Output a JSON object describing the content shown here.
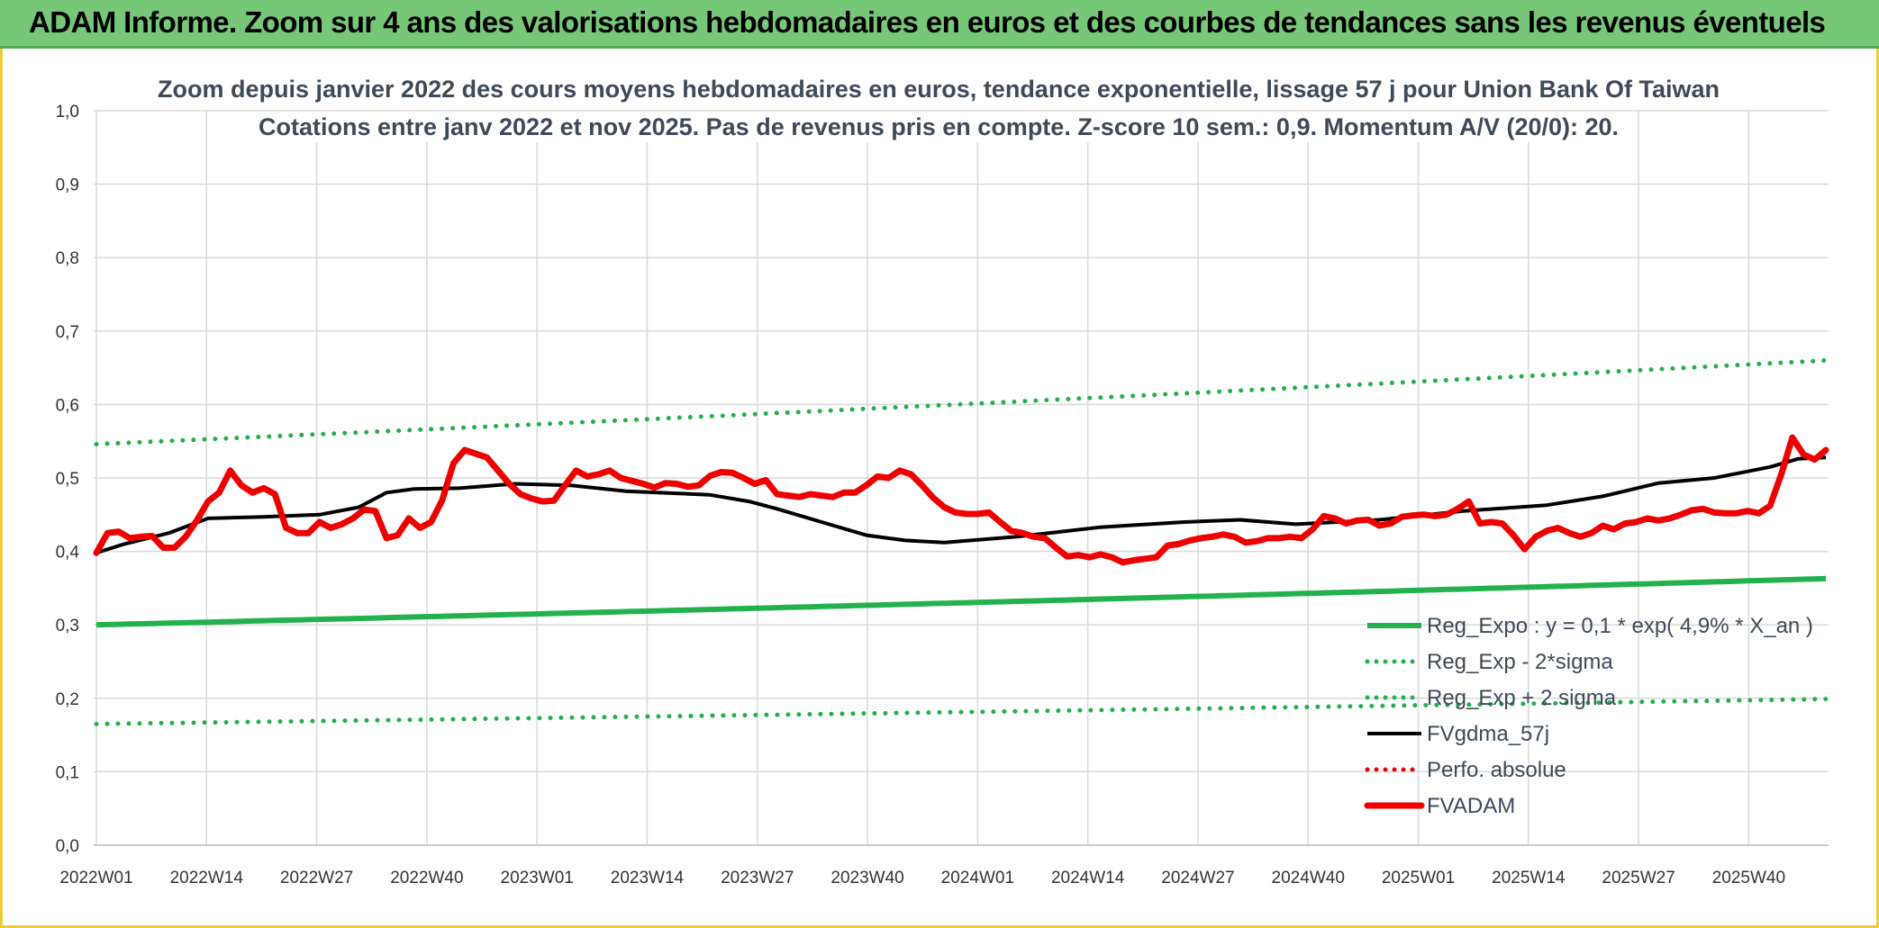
{
  "header": {
    "title": "ADAM Informe. Zoom sur 4 ans des valorisations hebdomadaires en euros et des courbes de tendances sans les revenus éventuels"
  },
  "colors": {
    "banner": "#77c779",
    "trend": "#22b14c",
    "band": "#22b14c",
    "smooth": "#000000",
    "price": "#ee0000",
    "perfo": "#ee0000",
    "grid": "#d9d9d9"
  },
  "chart_data": {
    "type": "line",
    "title_lines": [
      "Zoom depuis janvier 2022 des cours moyens hebdomadaires en euros, tendance exponentielle, lissage 57 j pour Union Bank Of Taiwan",
      "Cotations entre janv 2022 et nov 2025. Pas de revenus pris en compte. Z-score 10 sem.: 0,9. Momentum A/V (20/0): 20."
    ],
    "ylim": [
      0,
      1.0
    ],
    "yticks": [
      "0,0",
      "0,1",
      "0,2",
      "0,3",
      "0,4",
      "0,5",
      "0,6",
      "0,7",
      "0,8",
      "0,9",
      "1,0"
    ],
    "xticks": [
      "2022W01",
      "2022W14",
      "2022W27",
      "2022W40",
      "2023W01",
      "2023W14",
      "2023W27",
      "2023W40",
      "2024W01",
      "2024W14",
      "2024W27",
      "2024W40",
      "2025W01",
      "2025W14",
      "2025W27",
      "2025W40"
    ],
    "n_weeks": 205,
    "legend": [
      {
        "key": "reg",
        "label": "Reg_Expo : y = 0,1 * exp( 4,9% *  X_an )",
        "style": "solid",
        "color": "#22b14c"
      },
      {
        "key": "lower",
        "label": "Reg_Exp - 2*sigma",
        "style": "dotted",
        "color": "#22b14c"
      },
      {
        "key": "upper",
        "label": "Reg_Exp + 2 sigma",
        "style": "dotted",
        "color": "#22b14c"
      },
      {
        "key": "smooth",
        "label": "FVgdma_57j",
        "style": "solid",
        "color": "#000000"
      },
      {
        "key": "perfo",
        "label": "Perfo. absolue",
        "style": "dotted",
        "color": "#ee0000"
      },
      {
        "key": "price",
        "label": "FVADAM",
        "style": "solid-thick",
        "color": "#ee0000"
      }
    ],
    "series": [
      {
        "name": "Reg_Expo",
        "start": 0.3,
        "end": 0.363
      },
      {
        "name": "Reg_Exp - 2*sigma",
        "start": 0.165,
        "end": 0.199
      },
      {
        "name": "Reg_Exp + 2 sigma",
        "start": 0.546,
        "end": 0.66
      },
      {
        "name": "FVgdma_57j",
        "points": [
          [
            0,
            0.398
          ],
          [
            5,
            0.41
          ],
          [
            13,
            0.425
          ],
          [
            20,
            0.445
          ],
          [
            30,
            0.447
          ],
          [
            40,
            0.45
          ],
          [
            47,
            0.46
          ],
          [
            52,
            0.48
          ],
          [
            57,
            0.485
          ],
          [
            65,
            0.486
          ],
          [
            75,
            0.492
          ],
          [
            85,
            0.49
          ],
          [
            95,
            0.482
          ],
          [
            110,
            0.477
          ],
          [
            117,
            0.468
          ],
          [
            122,
            0.458
          ],
          [
            130,
            0.44
          ],
          [
            138,
            0.422
          ],
          [
            145,
            0.415
          ],
          [
            152,
            0.412
          ],
          [
            165,
            0.42
          ],
          [
            180,
            0.433
          ],
          [
            195,
            0.44
          ],
          [
            205,
            0.443
          ],
          [
            215,
            0.437
          ],
          [
            230,
            0.443
          ],
          [
            245,
            0.455
          ],
          [
            260,
            0.463
          ],
          [
            270,
            0.475
          ],
          [
            280,
            0.493
          ],
          [
            290,
            0.5
          ],
          [
            300,
            0.515
          ],
          [
            305,
            0.526
          ],
          [
            310,
            0.528
          ]
        ]
      },
      {
        "name": "FVADAM",
        "points": [
          [
            0,
            0.398
          ],
          [
            2,
            0.425
          ],
          [
            4,
            0.427
          ],
          [
            6,
            0.418
          ],
          [
            8,
            0.42
          ],
          [
            10,
            0.421
          ],
          [
            12,
            0.405
          ],
          [
            14,
            0.405
          ],
          [
            16,
            0.42
          ],
          [
            18,
            0.442
          ],
          [
            20,
            0.468
          ],
          [
            22,
            0.48
          ],
          [
            24,
            0.51
          ],
          [
            26,
            0.49
          ],
          [
            28,
            0.48
          ],
          [
            30,
            0.486
          ],
          [
            32,
            0.478
          ],
          [
            34,
            0.432
          ],
          [
            36,
            0.425
          ],
          [
            38,
            0.425
          ],
          [
            40,
            0.44
          ],
          [
            42,
            0.432
          ],
          [
            44,
            0.437
          ],
          [
            46,
            0.445
          ],
          [
            48,
            0.457
          ],
          [
            50,
            0.455
          ],
          [
            52,
            0.418
          ],
          [
            54,
            0.422
          ],
          [
            56,
            0.445
          ],
          [
            58,
            0.432
          ],
          [
            60,
            0.44
          ],
          [
            62,
            0.47
          ],
          [
            64,
            0.52
          ],
          [
            66,
            0.538
          ],
          [
            68,
            0.533
          ],
          [
            70,
            0.528
          ],
          [
            72,
            0.51
          ],
          [
            74,
            0.492
          ],
          [
            76,
            0.478
          ],
          [
            78,
            0.472
          ],
          [
            80,
            0.468
          ],
          [
            82,
            0.469
          ],
          [
            84,
            0.49
          ],
          [
            86,
            0.51
          ],
          [
            88,
            0.502
          ],
          [
            90,
            0.505
          ],
          [
            92,
            0.51
          ],
          [
            94,
            0.5
          ],
          [
            96,
            0.496
          ],
          [
            98,
            0.492
          ],
          [
            100,
            0.487
          ],
          [
            102,
            0.493
          ],
          [
            104,
            0.492
          ],
          [
            106,
            0.488
          ],
          [
            108,
            0.49
          ],
          [
            110,
            0.503
          ],
          [
            112,
            0.508
          ],
          [
            114,
            0.507
          ],
          [
            116,
            0.5
          ],
          [
            118,
            0.492
          ],
          [
            120,
            0.497
          ],
          [
            122,
            0.478
          ],
          [
            124,
            0.476
          ],
          [
            126,
            0.474
          ],
          [
            128,
            0.478
          ],
          [
            130,
            0.476
          ],
          [
            132,
            0.474
          ],
          [
            134,
            0.48
          ],
          [
            136,
            0.48
          ],
          [
            138,
            0.49
          ],
          [
            140,
            0.502
          ],
          [
            142,
            0.5
          ],
          [
            144,
            0.51
          ],
          [
            146,
            0.505
          ],
          [
            148,
            0.49
          ],
          [
            150,
            0.473
          ],
          [
            152,
            0.46
          ],
          [
            154,
            0.453
          ],
          [
            156,
            0.451
          ],
          [
            158,
            0.451
          ],
          [
            160,
            0.453
          ],
          [
            162,
            0.44
          ],
          [
            164,
            0.428
          ],
          [
            166,
            0.425
          ],
          [
            168,
            0.42
          ],
          [
            170,
            0.418
          ],
          [
            172,
            0.405
          ],
          [
            174,
            0.393
          ],
          [
            176,
            0.395
          ],
          [
            178,
            0.392
          ],
          [
            180,
            0.396
          ],
          [
            182,
            0.392
          ],
          [
            184,
            0.385
          ],
          [
            186,
            0.388
          ],
          [
            188,
            0.39
          ],
          [
            190,
            0.392
          ],
          [
            192,
            0.408
          ],
          [
            194,
            0.41
          ],
          [
            196,
            0.415
          ],
          [
            198,
            0.418
          ],
          [
            200,
            0.42
          ],
          [
            202,
            0.423
          ],
          [
            204,
            0.42
          ],
          [
            206,
            0.412
          ],
          [
            208,
            0.414
          ],
          [
            210,
            0.418
          ],
          [
            212,
            0.418
          ],
          [
            214,
            0.42
          ],
          [
            216,
            0.418
          ],
          [
            218,
            0.43
          ],
          [
            220,
            0.448
          ],
          [
            222,
            0.445
          ],
          [
            224,
            0.438
          ],
          [
            226,
            0.442
          ],
          [
            228,
            0.443
          ],
          [
            230,
            0.435
          ],
          [
            232,
            0.438
          ],
          [
            234,
            0.447
          ],
          [
            236,
            0.449
          ],
          [
            238,
            0.45
          ],
          [
            240,
            0.448
          ],
          [
            242,
            0.45
          ],
          [
            244,
            0.458
          ],
          [
            246,
            0.468
          ],
          [
            248,
            0.438
          ],
          [
            250,
            0.44
          ],
          [
            252,
            0.438
          ],
          [
            254,
            0.422
          ],
          [
            256,
            0.403
          ],
          [
            258,
            0.42
          ],
          [
            260,
            0.428
          ],
          [
            262,
            0.432
          ],
          [
            264,
            0.425
          ],
          [
            266,
            0.42
          ],
          [
            268,
            0.425
          ],
          [
            270,
            0.435
          ],
          [
            272,
            0.43
          ],
          [
            274,
            0.438
          ],
          [
            276,
            0.44
          ],
          [
            278,
            0.445
          ],
          [
            280,
            0.442
          ],
          [
            282,
            0.445
          ],
          [
            284,
            0.45
          ],
          [
            286,
            0.456
          ],
          [
            288,
            0.458
          ],
          [
            290,
            0.453
          ],
          [
            292,
            0.452
          ],
          [
            294,
            0.452
          ],
          [
            296,
            0.455
          ],
          [
            298,
            0.452
          ],
          [
            300,
            0.462
          ],
          [
            302,
            0.505
          ],
          [
            304,
            0.555
          ],
          [
            306,
            0.532
          ],
          [
            308,
            0.525
          ],
          [
            310,
            0.538
          ]
        ]
      }
    ]
  }
}
